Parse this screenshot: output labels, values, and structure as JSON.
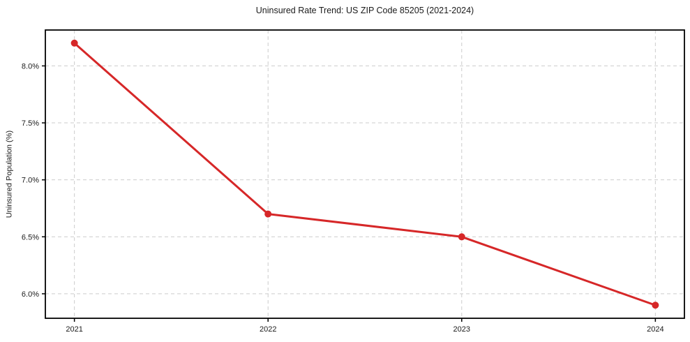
{
  "figure": {
    "background": "#ffffff"
  },
  "chart_data": {
    "type": "line",
    "title": "Uninsured Rate Trend: US ZIP Code 85205 (2021-2024)",
    "xlabel": "",
    "ylabel": "Uninsured Population (%)",
    "x": [
      2021,
      2022,
      2023,
      2024
    ],
    "x_tick_labels": [
      "2021",
      "2022",
      "2023",
      "2024"
    ],
    "y_ticks": [
      6.0,
      6.5,
      7.0,
      7.5,
      8.0
    ],
    "y_tick_labels": [
      "6.0%",
      "6.5%",
      "7.0%",
      "7.5%",
      "8.0%"
    ],
    "series": [
      {
        "name": "Uninsured rate",
        "values": [
          8.2,
          6.7,
          6.5,
          5.9
        ],
        "color": "#d62728",
        "marker": "circle",
        "line_width": 3,
        "marker_radius": 5
      }
    ],
    "xlim": [
      2020.85,
      2024.15
    ],
    "ylim": [
      5.785,
      8.315
    ],
    "grid": true,
    "grid_style": "dashed",
    "grid_color": "#cccccc",
    "axis_color": "#000000",
    "text_color": "#1a1a1a",
    "legend_position": "none"
  }
}
